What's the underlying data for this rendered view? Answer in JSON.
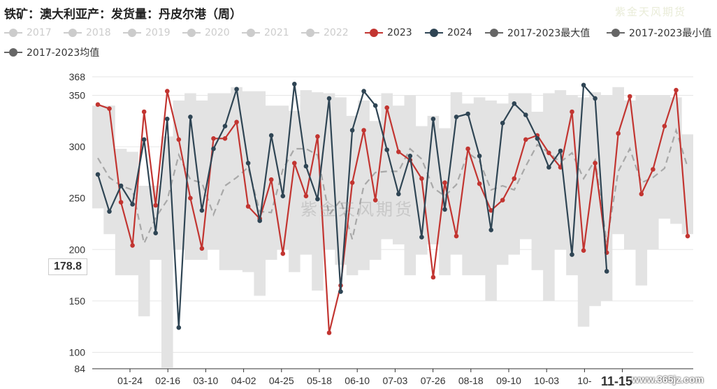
{
  "chart_data": {
    "type": "line",
    "title": "铁矿：澳大利亚产：发货量：丹皮尔港（周）",
    "ylim": [
      84,
      368
    ],
    "y_ticks": [
      84,
      100,
      150,
      200,
      250,
      300,
      350,
      368
    ],
    "x_ticks": [
      "01-24",
      "02-16",
      "03-10",
      "04-02",
      "04-25",
      "05-18",
      "06-10",
      "07-03",
      "07-26",
      "08-18",
      "09-10",
      "10-03",
      "10-",
      "11-15"
    ],
    "x_highlight": "11-15",
    "hover_value": "178.8",
    "grid": true,
    "legend_position": "top",
    "legend": [
      {
        "name": "2017",
        "color": "#cccccc",
        "hidden": true
      },
      {
        "name": "2018",
        "color": "#cccccc",
        "hidden": true
      },
      {
        "name": "2019",
        "color": "#cccccc",
        "hidden": true
      },
      {
        "name": "2020",
        "color": "#cccccc",
        "hidden": true
      },
      {
        "name": "2021",
        "color": "#cccccc",
        "hidden": true
      },
      {
        "name": "2022",
        "color": "#cccccc",
        "hidden": true
      },
      {
        "name": "2023",
        "color": "#c23531",
        "hidden": false
      },
      {
        "name": "2024",
        "color": "#2f4554",
        "hidden": false
      },
      {
        "name": "2017-2023最大值",
        "color": "#666666",
        "hidden": false
      },
      {
        "name": "2017-2023最小值",
        "color": "#666666",
        "hidden": false
      },
      {
        "name": "2017-2023均值",
        "color": "#666666",
        "hidden": false
      }
    ],
    "range_max": [
      340,
      340,
      298,
      295,
      262,
      262,
      310,
      345,
      352,
      345,
      352,
      352,
      358,
      354,
      354,
      340,
      340,
      335,
      355,
      353,
      352,
      348,
      330,
      345,
      325,
      352,
      340,
      350,
      320,
      330,
      318,
      353,
      342,
      348,
      345,
      342,
      352,
      352,
      334,
      352,
      355,
      350,
      348,
      353,
      350,
      358,
      345,
      350,
      350,
      350,
      348,
      312
    ],
    "range_min": [
      240,
      215,
      175,
      175,
      135,
      190,
      85,
      200,
      190,
      190,
      200,
      180,
      180,
      178,
      155,
      190,
      200,
      178,
      195,
      160,
      200,
      185,
      175,
      180,
      190,
      210,
      205,
      175,
      195,
      205,
      175,
      195,
      175,
      175,
      150,
      185,
      195,
      210,
      180,
      150,
      200,
      175,
      125,
      145,
      150,
      215,
      200,
      165,
      200,
      230,
      225,
      215
    ],
    "mean": [
      289,
      270,
      262,
      258,
      206,
      231,
      248,
      292,
      268,
      265,
      234,
      262,
      270,
      280,
      237,
      236,
      278,
      298,
      298,
      292,
      234,
      248,
      210,
      262,
      275,
      276,
      276,
      298,
      288,
      260,
      252,
      263,
      294,
      286,
      258,
      262,
      258,
      281,
      302,
      294,
      285,
      294,
      269,
      287,
      207,
      276,
      298,
      265,
      270,
      279,
      316,
      280
    ],
    "series": [
      {
        "name": "2023",
        "color": "#c23531",
        "values": [
          341,
          337,
          246,
          204,
          334,
          243,
          354,
          307,
          250,
          201,
          308,
          308,
          324,
          242,
          230,
          268,
          196,
          284,
          252,
          310,
          119,
          165,
          265,
          316,
          248,
          338,
          295,
          287,
          269,
          173,
          265,
          213,
          298,
          264,
          238,
          248,
          269,
          307,
          311,
          294,
          280,
          334,
          199,
          284,
          197,
          313,
          349,
          254,
          278,
          320,
          355,
          213
        ]
      },
      {
        "name": "2024",
        "color": "#2f4554",
        "values": [
          273,
          237,
          262,
          244,
          307,
          216,
          327,
          124,
          329,
          238,
          298,
          320,
          356,
          284,
          228,
          311,
          252,
          361,
          281,
          249,
          347,
          159,
          316,
          354,
          340,
          297,
          254,
          291,
          212,
          327,
          239,
          329,
          332,
          291,
          219,
          323,
          342,
          331,
          308,
          280,
          296,
          195,
          360,
          347,
          178.8
        ]
      }
    ]
  },
  "watermark_center": "紫金天风期货",
  "watermark_top": "紫金天风期货",
  "site_mark": "www.365jz.com"
}
